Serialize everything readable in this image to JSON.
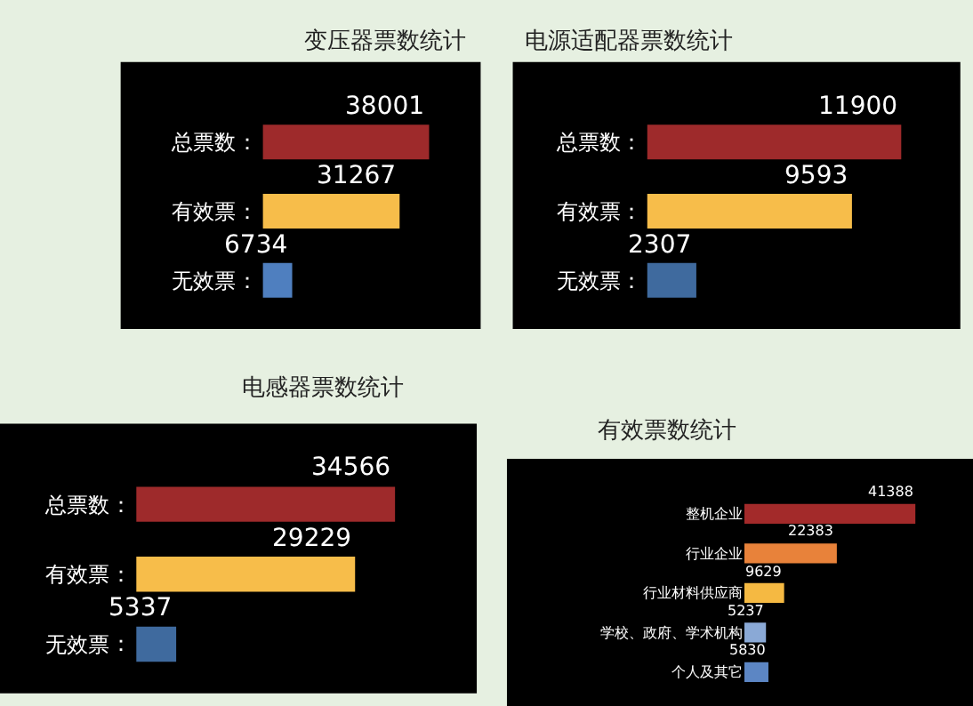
{
  "chart_data": [
    {
      "type": "bar",
      "orientation": "horizontal",
      "title": "变压器票数统计",
      "categories": [
        "总票数",
        "有效票",
        "无效票"
      ],
      "values": [
        38001,
        31267,
        6734
      ],
      "colors": [
        "#9e2a2b",
        "#f7bd4a",
        "#4f7fbf"
      ],
      "data_labels": true,
      "annotations": [
        "：",
        "：",
        "："
      ]
    },
    {
      "type": "bar",
      "orientation": "horizontal",
      "title": "电源适配器票数统计",
      "categories": [
        "总票数",
        "有效票",
        "无效票"
      ],
      "values": [
        11900,
        9593,
        2307
      ],
      "colors": [
        "#9e2a2b",
        "#f7bd4a",
        "#3f6a9e"
      ],
      "data_labels": true,
      "annotations": [
        "：",
        "：",
        "："
      ]
    },
    {
      "type": "bar",
      "orientation": "horizontal",
      "title": "电感器票数统计",
      "categories": [
        "总票数",
        "有效票",
        "无效票"
      ],
      "values": [
        34566,
        29229,
        5337
      ],
      "colors": [
        "#9e2a2b",
        "#f7bd4a",
        "#3f6a9e"
      ],
      "data_labels": true,
      "annotations": [
        "：",
        "：",
        "："
      ]
    },
    {
      "type": "bar",
      "orientation": "horizontal",
      "title": "有效票数统计",
      "categories": [
        "整机企业",
        "行业企业",
        "行业材料供应商",
        "学校、政府、学术机构",
        "个人及其它"
      ],
      "values": [
        41388,
        22383,
        9629,
        5237,
        5830
      ],
      "colors": [
        "#a32a2a",
        "#e8823a",
        "#f5b942",
        "#8aa9d6",
        "#5c86c4"
      ],
      "data_labels": true
    }
  ]
}
